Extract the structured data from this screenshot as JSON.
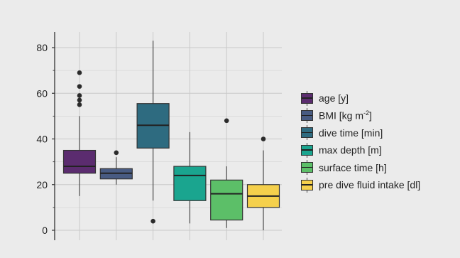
{
  "chart_data": {
    "type": "box",
    "title": "",
    "xlabel": "",
    "ylabel": "",
    "ylim": [
      -6,
      88
    ],
    "yticks": [
      0,
      20,
      40,
      60,
      80
    ],
    "grid": true,
    "legend_position": "right",
    "series": [
      {
        "name": "age [y]",
        "color": "#5b2c6f",
        "whisker_low": 15,
        "q1": 25,
        "median": 28,
        "q3": 35,
        "whisker_high": 50,
        "outliers": [
          55,
          57,
          59,
          63,
          69
        ]
      },
      {
        "name": "BMI [kg m-2]",
        "color": "#485b82",
        "whisker_low": 20,
        "q1": 22.5,
        "median": 25,
        "q3": 27,
        "whisker_high": 32,
        "outliers": [
          34
        ]
      },
      {
        "name": "dive time [min]",
        "color": "#2e6b80",
        "whisker_low": 13,
        "q1": 36,
        "median": 46,
        "q3": 55.5,
        "whisker_high": 83,
        "outliers": [
          4
        ]
      },
      {
        "name": "max depth [m]",
        "color": "#1aa58f",
        "whisker_low": 3,
        "q1": 13,
        "median": 24,
        "q3": 28,
        "whisker_high": 43,
        "outliers": []
      },
      {
        "name": "surface time [h]",
        "color": "#5cbf68",
        "whisker_low": 1,
        "q1": 4.5,
        "median": 16,
        "q3": 22,
        "whisker_high": 28,
        "outliers": [
          48
        ]
      },
      {
        "name": "pre dive fluid intake [dl]",
        "color": "#f5d04c",
        "whisker_low": 0,
        "q1": 10,
        "median": 15,
        "q3": 20,
        "whisker_high": 35,
        "outliers": [
          40
        ]
      }
    ]
  },
  "legend": {
    "items": [
      {
        "label": "age [y]"
      },
      {
        "label": "BMI [kg m",
        "sup": "-2",
        "suffix": "]"
      },
      {
        "label": "dive time [min]"
      },
      {
        "label": "max depth [m]"
      },
      {
        "label": "surface time [h]"
      },
      {
        "label": "pre dive fluid intake [dl]"
      }
    ]
  }
}
